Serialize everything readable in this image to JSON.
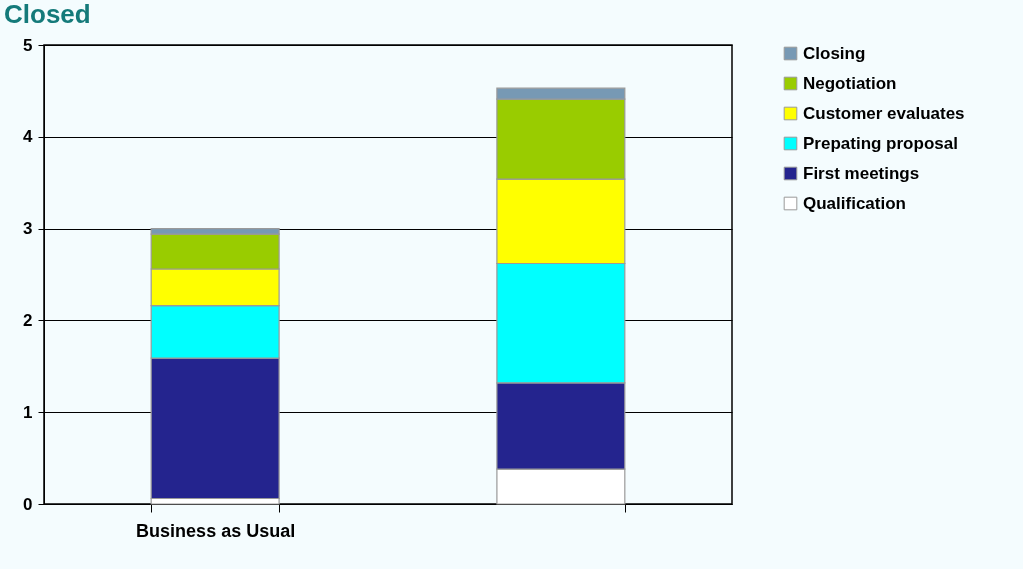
{
  "chart_data": {
    "type": "bar",
    "title": "Closed",
    "stacked": true,
    "categories": [
      "Business as Usual",
      null
    ],
    "series": [
      {
        "name": "Qualification",
        "color": "#ffffff",
        "values": [
          0.06,
          0.38
        ]
      },
      {
        "name": "First meetings",
        "color": "#24248e",
        "values": [
          1.53,
          0.94
        ]
      },
      {
        "name": "Prepating proposal",
        "color": "#00ffff",
        "values": [
          0.57,
          1.3
        ]
      },
      {
        "name": "Customer evaluates",
        "color": "#ffff00",
        "values": [
          0.4,
          0.92
        ]
      },
      {
        "name": "Negotiation",
        "color": "#99cc00",
        "values": [
          0.38,
          0.87
        ]
      },
      {
        "name": "Closing",
        "color": "#7799b4",
        "values": [
          0.06,
          0.12
        ]
      }
    ],
    "ylim": [
      0,
      5
    ],
    "yticks": [
      0,
      1,
      2,
      3,
      4,
      5
    ],
    "grid": "y",
    "legend": "right"
  }
}
